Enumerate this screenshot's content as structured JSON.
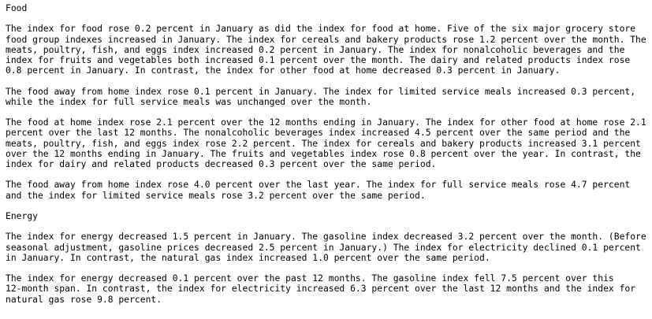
{
  "page": {
    "background_color": "#ffffff",
    "text_color": "#000000"
  },
  "report": {
    "sections": [
      {
        "heading": "Food",
        "paragraphs": [
          "The index for food rose 0.2 percent in January as did the index for food at home. Five of the six major grocery store\nfood group indexes increased in January. The index for cereals and bakery products rose 1.2 percent over the month. The\nmeats, poultry, fish, and eggs index increased 0.2 percent in January. The index for nonalcoholic beverages and the\nindex for fruits and vegetables both increased 0.1 percent over the month. The dairy and related products index rose\n0.8 percent in January. In contrast, the index for other food at home decreased 0.3 percent in January.",
          "The food away from home index rose 0.1 percent in January. The index for limited service meals increased 0.3 percent,\nwhile the index for full service meals was unchanged over the month.",
          "The food at home index rose 2.1 percent over the 12 months ending in January. The index for other food at home rose 2.1\npercent over the last 12 months. The nonalcoholic beverages index increased 4.5 percent over the same period and the\nmeats, poultry, fish, and eggs index rose 2.2 percent. The index for cereals and bakery products increased 3.1 percent\nover the 12 months ending in January. The fruits and vegetables index rose 0.8 percent over the year. In contrast, the\nindex for dairy and related products decreased 0.3 percent over the same period.",
          "The food away from home index rose 4.0 percent over the last year. The index for full service meals rose 4.7 percent\nand the index for limited service meals rose 3.2 percent over the same period."
        ]
      },
      {
        "heading": "Energy",
        "paragraphs": [
          "The index for energy decreased 1.5 percent in January. The gasoline index decreased 3.2 percent over the month. (Before\nseasonal adjustment, gasoline prices decreased 2.5 percent in January.) The index for electricity declined 0.1 percent\nin January. In contrast, the natural gas index increased 1.0 percent over the same period.",
          "The index for energy decreased 0.1 percent over the past 12 months. The gasoline index fell 7.5 percent over this\n12-month span. In contrast, the index for electricity increased 6.3 percent over the last 12 months and the index for\nnatural gas rose 9.8 percent."
        ]
      }
    ]
  }
}
